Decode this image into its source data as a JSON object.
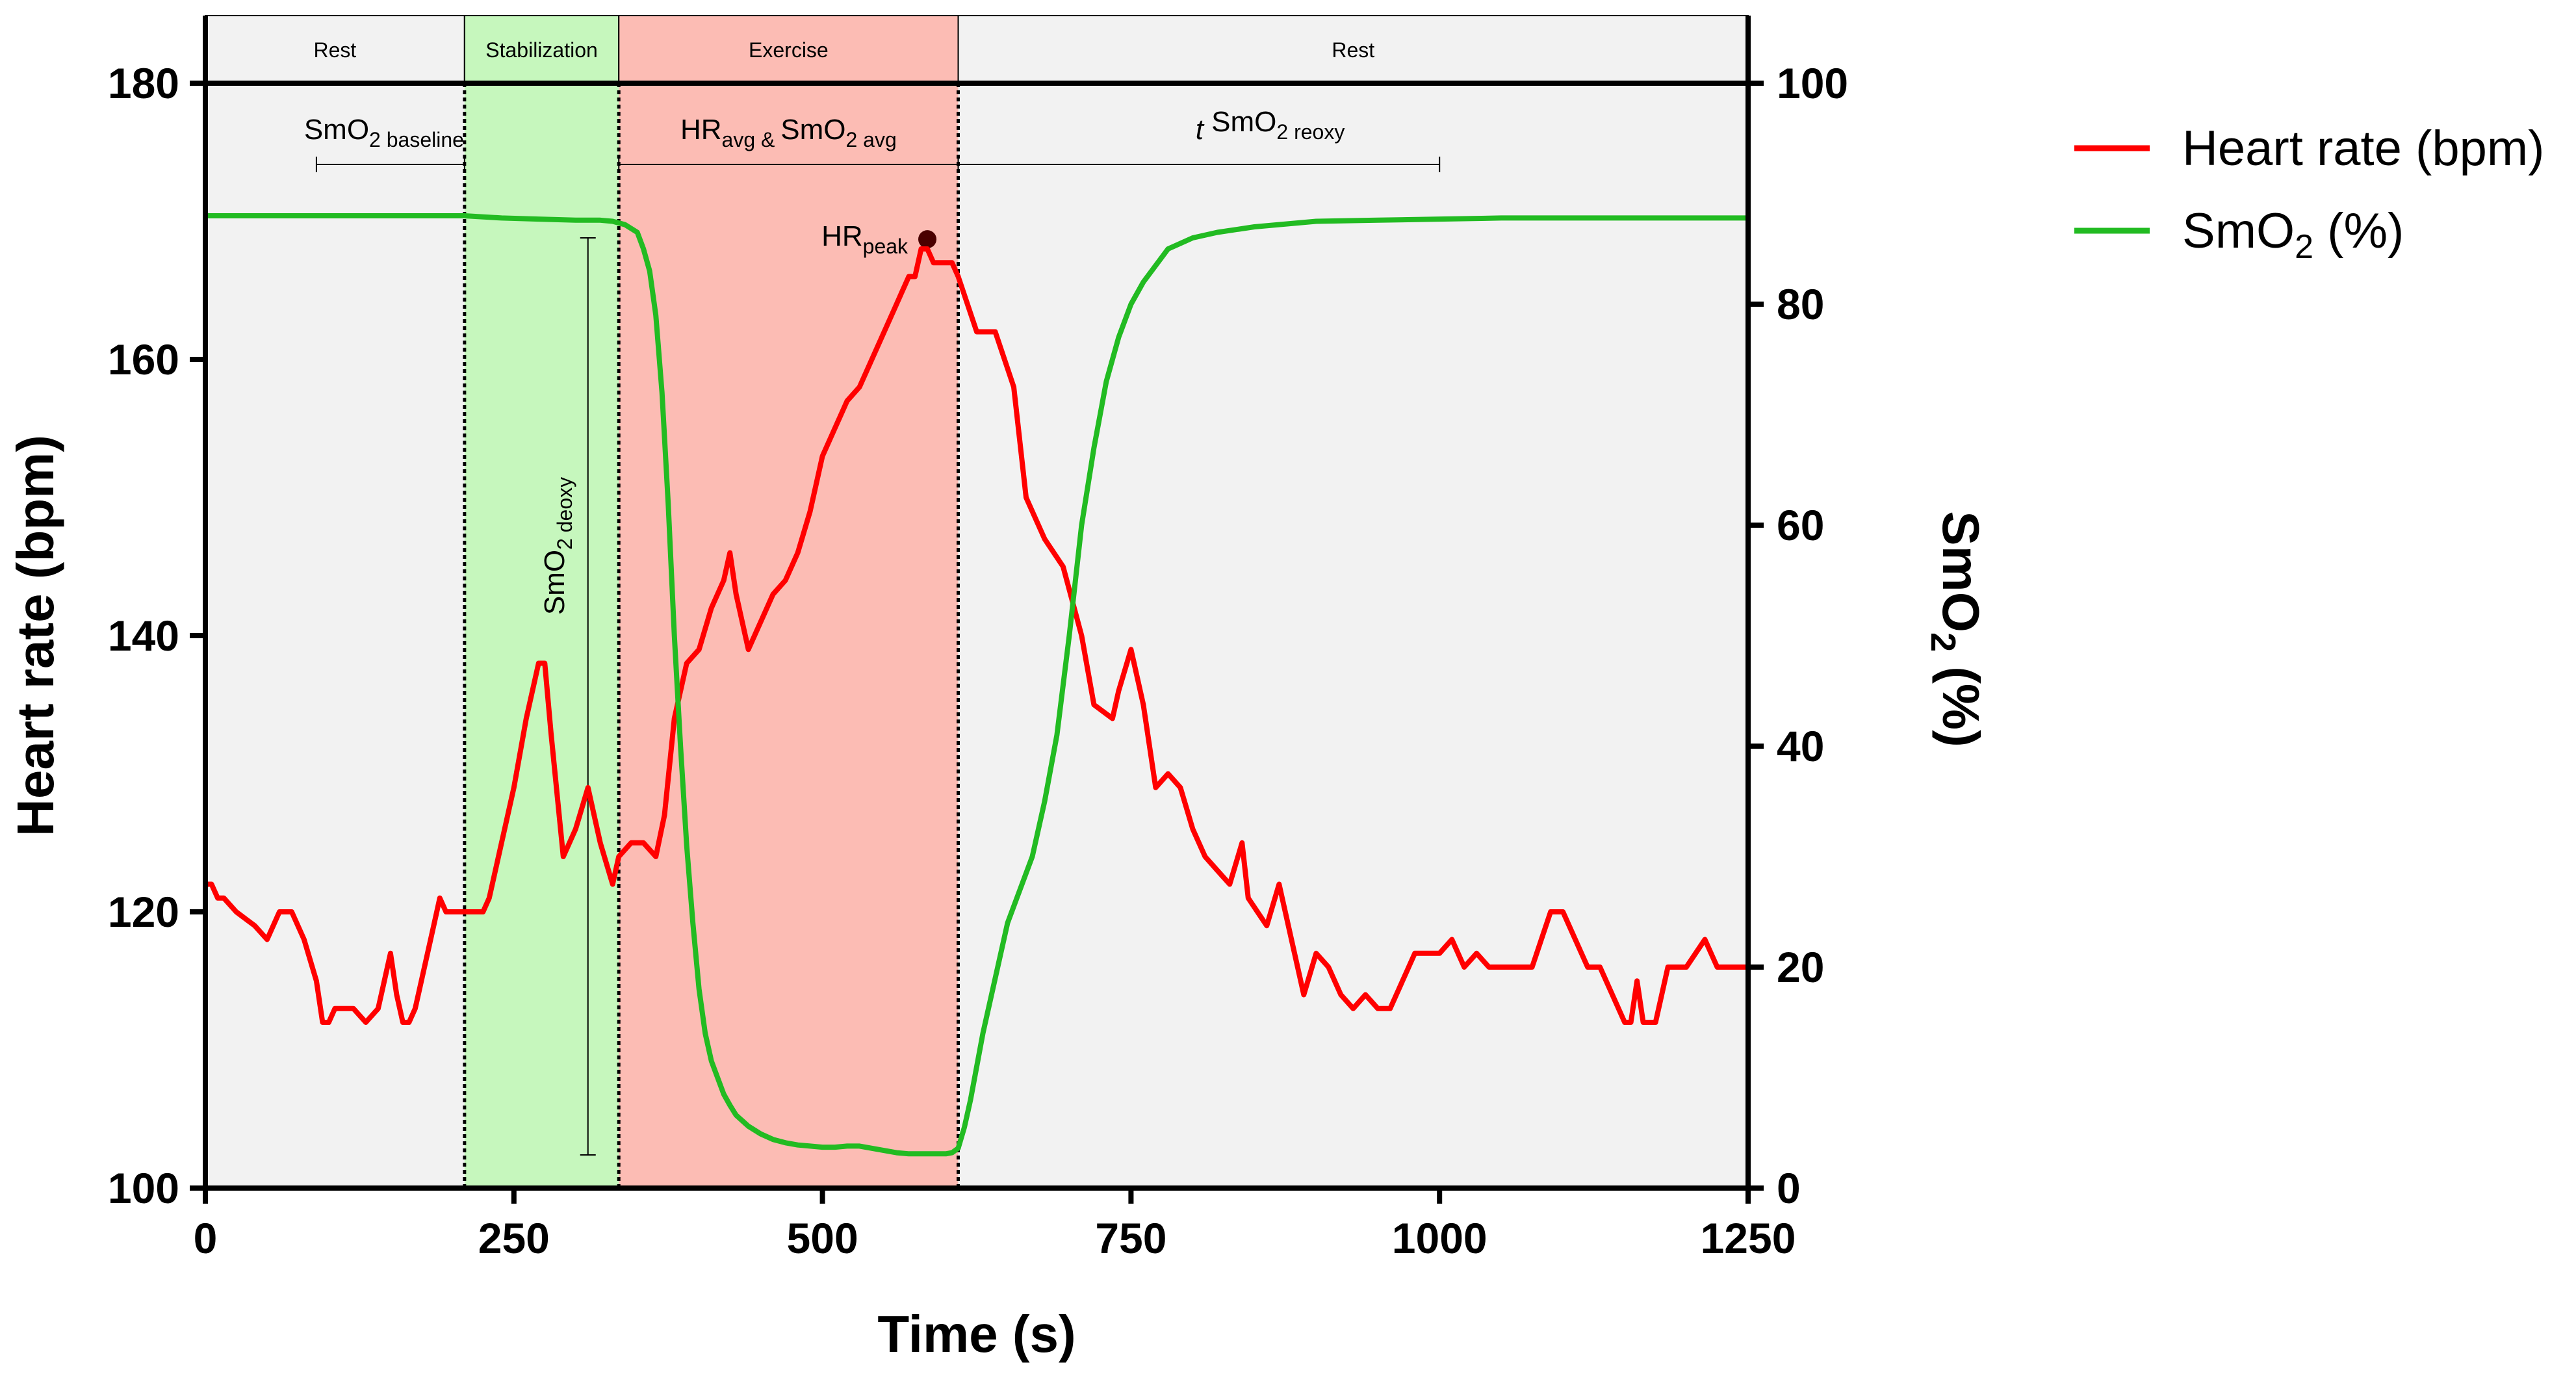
{
  "chart_data": {
    "type": "line",
    "title": "",
    "xlabel": "Time (s)",
    "ylabel_left": "Heart rate (bpm)",
    "ylabel_right": "SmO2 (%)",
    "xlim": [
      0,
      1250
    ],
    "ylim_left": [
      100,
      180
    ],
    "ylim_right": [
      0,
      100
    ],
    "xticks": [
      0,
      250,
      500,
      750,
      1000,
      1250
    ],
    "yticks_left": [
      100,
      120,
      140,
      160,
      180
    ],
    "yticks_right": [
      0,
      20,
      40,
      60,
      80,
      100
    ],
    "phases": [
      {
        "label": "Rest",
        "start": 0,
        "end": 210,
        "color": "#f2f2f2"
      },
      {
        "label": "Stabilization",
        "start": 210,
        "end": 335,
        "color": "#c6f7bd"
      },
      {
        "label": "Exercise",
        "start": 335,
        "end": 610,
        "color": "#fcbcb4"
      },
      {
        "label": "Rest",
        "start": 610,
        "end": 1250,
        "color": "#f2f2f2"
      }
    ],
    "annotations": [
      {
        "name": "smo2-baseline",
        "text": "SmO",
        "sub1": "2 baseline",
        "range": [
          90,
          210
        ]
      },
      {
        "name": "hr-smo2-avg",
        "text": "HR",
        "sub1": "avg & ",
        "text2": "SmO",
        "sub2": "2 avg",
        "range": [
          335,
          610
        ]
      },
      {
        "name": "t-smo2-reoxy",
        "text": "t",
        "text2": " SmO",
        "sub2": "2 reoxy",
        "range": [
          610,
          1000
        ]
      },
      {
        "name": "smo2-deoxy",
        "text": "SmO",
        "sub1": "2 deoxy",
        "time": 310,
        "smo2_range": [
          3,
          86
        ]
      },
      {
        "name": "hr-peak",
        "text": "HR",
        "sub1": "peak",
        "time": 585,
        "hr": 168.7
      }
    ],
    "legend": {
      "position": "right"
    },
    "series": [
      {
        "name": "Heart rate (bpm)",
        "axis": "left",
        "color": "#ff0000",
        "x": [
          0,
          5,
          10,
          15,
          25,
          40,
          50,
          55,
          60,
          65,
          70,
          80,
          90,
          95,
          100,
          105,
          110,
          120,
          130,
          140,
          150,
          155,
          160,
          165,
          170,
          175,
          180,
          185,
          190,
          195,
          200,
          205,
          210,
          225,
          230,
          240,
          250,
          260,
          270,
          275,
          280,
          290,
          300,
          310,
          320,
          330,
          335,
          345,
          355,
          365,
          372,
          380,
          390,
          400,
          410,
          420,
          425,
          430,
          440,
          450,
          460,
          470,
          480,
          490,
          495,
          500,
          510,
          520,
          530,
          540,
          550,
          560,
          565,
          570,
          575,
          580,
          585,
          590,
          595,
          600,
          605,
          610,
          625,
          640,
          655,
          665,
          680,
          695,
          710,
          720,
          735,
          740,
          750,
          760,
          770,
          780,
          790,
          800,
          810,
          820,
          830,
          840,
          845,
          860,
          870,
          880,
          890,
          900,
          910,
          920,
          930,
          940,
          950,
          960,
          970,
          980,
          990,
          1000,
          1010,
          1020,
          1030,
          1040,
          1060,
          1075,
          1090,
          1100,
          1110,
          1120,
          1130,
          1140,
          1150,
          1155,
          1160,
          1165,
          1175,
          1185,
          1200,
          1215,
          1225,
          1235,
          1250
        ],
        "values": [
          122,
          122,
          121,
          121,
          120,
          119,
          118,
          119,
          120,
          120,
          120,
          118,
          115,
          112,
          112,
          113,
          113,
          113,
          112,
          113,
          117,
          114,
          112,
          112,
          113,
          115,
          117,
          119,
          121,
          120,
          120,
          120,
          120,
          120,
          121,
          125,
          129,
          134,
          138,
          138,
          133,
          124,
          126,
          129,
          125,
          122,
          124,
          125,
          125,
          124,
          127,
          134,
          138,
          139,
          142,
          144,
          146,
          143,
          139,
          141,
          143,
          144,
          146,
          149,
          151,
          153,
          155,
          157,
          158,
          160,
          162,
          164,
          165,
          166,
          166,
          168,
          168,
          167,
          167,
          167,
          167,
          166,
          162,
          162,
          158,
          150,
          147,
          145,
          140,
          135,
          134,
          136,
          139,
          135,
          129,
          130,
          129,
          126,
          124,
          123,
          122,
          125,
          121,
          119,
          122,
          118,
          114,
          117,
          116,
          114,
          113,
          114,
          113,
          113,
          115,
          117,
          117,
          117,
          118,
          116,
          117,
          116,
          116,
          116,
          120,
          120,
          118,
          116,
          116,
          114,
          112,
          112,
          115,
          112,
          112,
          116,
          116,
          118,
          116,
          116,
          116
        ]
      },
      {
        "name": "SmO2 (%)",
        "axis": "right",
        "color": "#22bb22",
        "x": [
          0,
          100,
          200,
          210,
          240,
          270,
          300,
          320,
          330,
          340,
          350,
          355,
          360,
          365,
          370,
          375,
          380,
          385,
          390,
          395,
          400,
          405,
          410,
          415,
          420,
          425,
          430,
          440,
          450,
          460,
          470,
          480,
          490,
          500,
          510,
          520,
          530,
          540,
          550,
          560,
          570,
          580,
          590,
          600,
          605,
          610,
          615,
          620,
          625,
          630,
          640,
          650,
          660,
          670,
          680,
          690,
          700,
          710,
          720,
          730,
          740,
          750,
          760,
          770,
          780,
          800,
          820,
          850,
          900,
          950,
          1000,
          1050,
          1100,
          1150,
          1200,
          1250
        ],
        "values": [
          88,
          88,
          88,
          88,
          87.8,
          87.7,
          87.6,
          87.6,
          87.5,
          87.2,
          86.5,
          85,
          83,
          79,
          72,
          62,
          50,
          40,
          31,
          24,
          18,
          14,
          11.5,
          10,
          8.5,
          7.5,
          6.6,
          5.6,
          4.9,
          4.4,
          4.1,
          3.9,
          3.8,
          3.7,
          3.7,
          3.8,
          3.8,
          3.6,
          3.4,
          3.2,
          3.1,
          3.1,
          3.1,
          3.1,
          3.2,
          3.6,
          5.5,
          8,
          11,
          14,
          19,
          24,
          27,
          30,
          35,
          41,
          50,
          60,
          67,
          73,
          77,
          80,
          82,
          83.5,
          85,
          86,
          86.5,
          87,
          87.5,
          87.6,
          87.7,
          87.8,
          87.8,
          87.8,
          87.8,
          87.8
        ]
      }
    ]
  }
}
